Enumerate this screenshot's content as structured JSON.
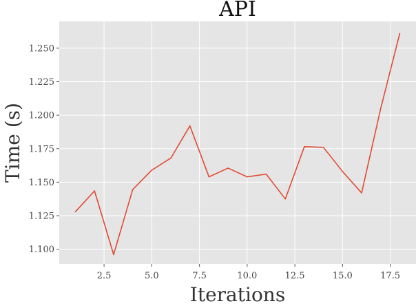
{
  "chart_data": {
    "type": "line",
    "title": "API",
    "xlabel": "Iterations",
    "ylabel": "Time (s)",
    "xlim": [
      0.15,
      18.85
    ],
    "ylim": [
      1.089,
      1.27
    ],
    "xticks": [
      2.5,
      5.0,
      7.5,
      10.0,
      12.5,
      15.0,
      17.5
    ],
    "xtick_labels": [
      "2.5",
      "5.0",
      "7.5",
      "10.0",
      "12.5",
      "15.0",
      "17.5"
    ],
    "yticks": [
      1.1,
      1.125,
      1.15,
      1.175,
      1.2,
      1.225,
      1.25
    ],
    "ytick_labels": [
      "1.100",
      "1.125",
      "1.150",
      "1.175",
      "1.200",
      "1.225",
      "1.250"
    ],
    "grid": true,
    "series": [
      {
        "color": "#e24a33",
        "x": [
          1,
          2,
          3,
          4,
          5,
          6,
          7,
          8,
          9,
          10,
          11,
          12,
          13,
          14,
          15,
          16,
          17,
          18
        ],
        "y": [
          1.128,
          1.1435,
          1.096,
          1.1445,
          1.159,
          1.168,
          1.192,
          1.154,
          1.1605,
          1.154,
          1.156,
          1.1375,
          1.1765,
          1.176,
          1.158,
          1.142,
          1.205,
          1.261
        ]
      }
    ]
  }
}
